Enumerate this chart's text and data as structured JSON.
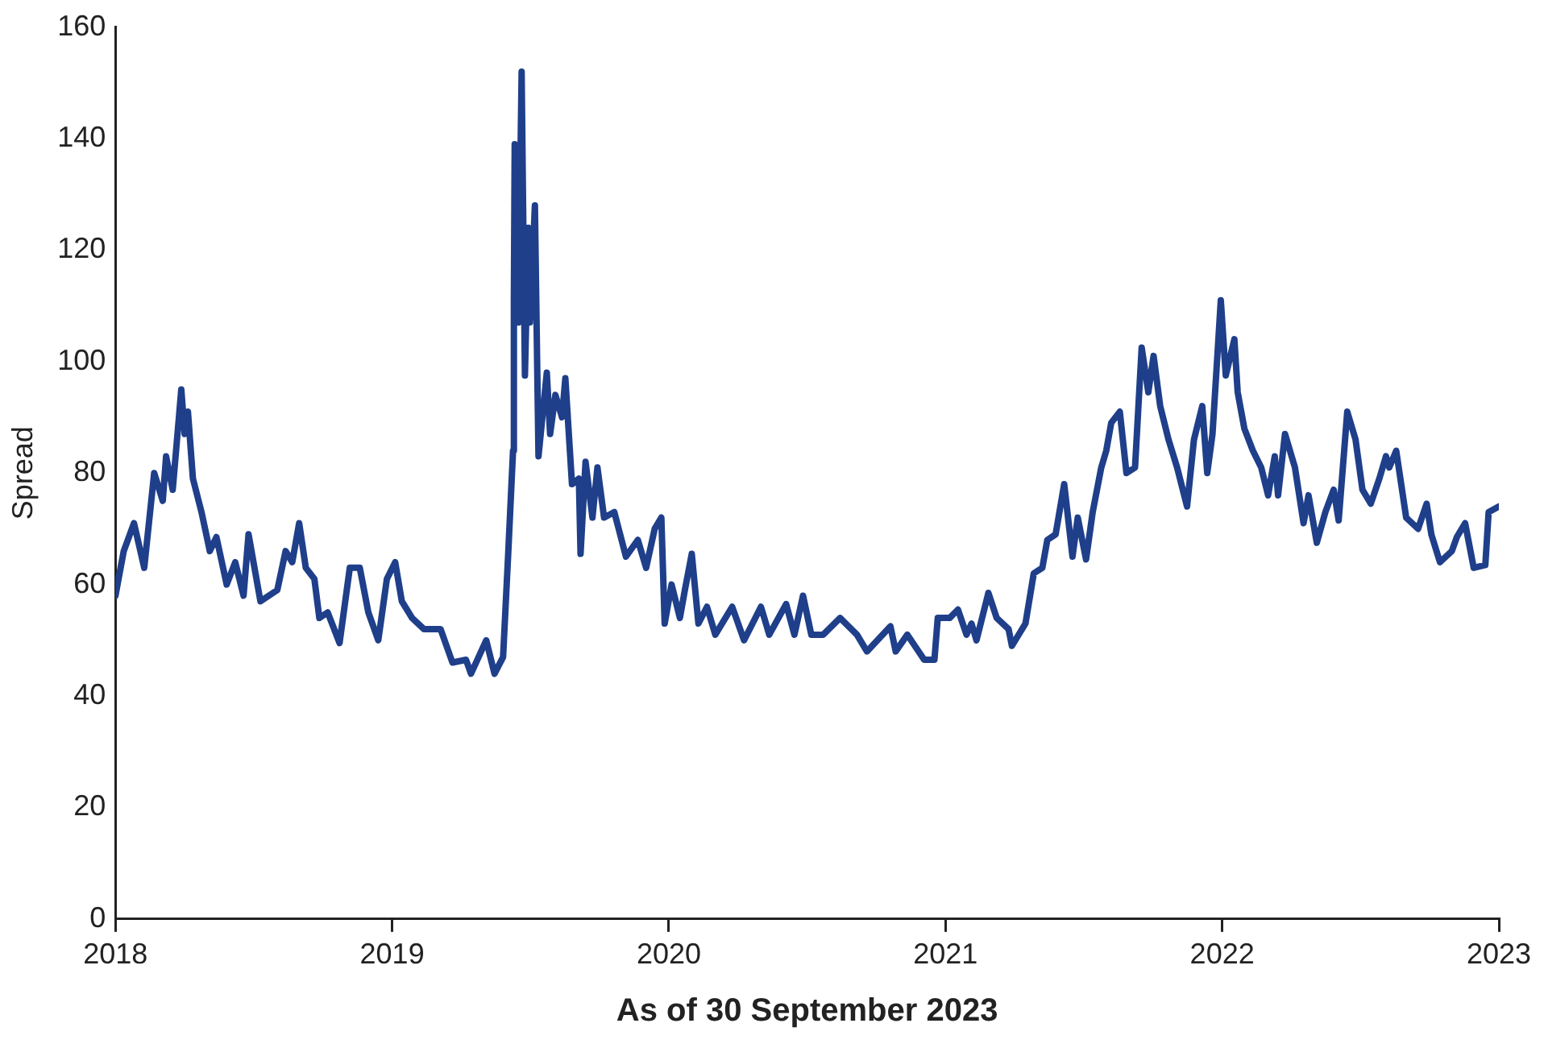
{
  "chart_data": {
    "type": "line",
    "xlabel": "As of 30 September 2023",
    "ylabel": "Spread",
    "xlim": [
      2018,
      2023
    ],
    "xticks": [
      2018,
      2019,
      2020,
      2021,
      2022,
      2023
    ],
    "ylim": [
      0,
      160
    ],
    "yticks": [
      0,
      20,
      40,
      60,
      80,
      100,
      120,
      140,
      160
    ],
    "grid": false,
    "legend": false,
    "marker": "none",
    "line_style": "solid",
    "series": [
      {
        "color": "#1f3f8a",
        "x": [
          2018.0,
          2018.03,
          2018.067,
          2018.104,
          2018.14,
          2018.171,
          2018.183,
          2018.207,
          2018.238,
          2018.25,
          2018.262,
          2018.28,
          2018.311,
          2018.341,
          2018.365,
          2018.402,
          2018.433,
          2018.463,
          2018.481,
          2018.524,
          2018.585,
          2018.615,
          2018.639,
          2018.664,
          2018.688,
          2018.719,
          2018.737,
          2018.767,
          2018.81,
          2018.847,
          2018.883,
          2018.914,
          2018.95,
          2018.981,
          2019.011,
          2019.035,
          2019.072,
          2019.115,
          2019.175,
          2019.218,
          2019.267,
          2019.285,
          2019.34,
          2019.37,
          2019.401,
          2019.419,
          2019.437,
          2019.44,
          2019.443,
          2019.456,
          2019.468,
          2019.48,
          2019.492,
          2019.498,
          2019.516,
          2019.529,
          2019.559,
          2019.571,
          2019.59,
          2019.614,
          2019.626,
          2019.65,
          2019.675,
          2019.681,
          2019.699,
          2019.724,
          2019.742,
          2019.766,
          2019.803,
          2019.845,
          2019.888,
          2019.918,
          2019.949,
          2019.973,
          2019.985,
          2020.01,
          2020.04,
          2020.058,
          2020.083,
          2020.107,
          2020.138,
          2020.168,
          2020.229,
          2020.272,
          2020.333,
          2020.363,
          2020.424,
          2020.454,
          2020.485,
          2020.515,
          2020.558,
          2020.619,
          2020.68,
          2020.716,
          2020.801,
          2020.82,
          2020.862,
          2020.923,
          2020.96,
          2020.972,
          2021.015,
          2021.045,
          2021.076,
          2021.094,
          2021.112,
          2021.155,
          2021.185,
          2021.228,
          2021.24,
          2021.289,
          2021.319,
          2021.35,
          2021.368,
          2021.398,
          2021.429,
          2021.459,
          2021.478,
          2021.508,
          2021.532,
          2021.563,
          2021.581,
          2021.599,
          2021.63,
          2021.654,
          2021.685,
          2021.709,
          2021.733,
          2021.752,
          2021.776,
          2021.806,
          2021.837,
          2021.873,
          2021.898,
          2021.928,
          2021.946,
          2021.965,
          2021.995,
          2022.013,
          2022.044,
          2022.056,
          2022.08,
          2022.111,
          2022.141,
          2022.166,
          2022.19,
          2022.202,
          2022.227,
          2022.263,
          2022.294,
          2022.312,
          2022.342,
          2022.373,
          2022.403,
          2022.421,
          2022.452,
          2022.482,
          2022.507,
          2022.537,
          2022.568,
          2022.592,
          2022.604,
          2022.629,
          2022.665,
          2022.708,
          2022.739,
          2022.756,
          2022.787,
          2022.83,
          2022.848,
          2022.878,
          2022.909,
          2022.951,
          2022.963,
          2023.0
        ],
        "values": [
          58,
          66,
          71,
          63,
          80,
          75,
          83,
          77,
          95,
          87,
          91,
          79,
          73,
          66,
          68.5,
          60,
          64,
          58,
          69,
          57,
          59,
          66,
          64,
          71,
          63,
          61,
          54,
          55,
          49.5,
          63,
          63,
          55,
          50,
          61,
          64,
          57,
          54,
          52,
          52,
          46,
          46.5,
          44,
          50,
          44,
          47,
          65,
          84,
          111,
          139,
          107,
          152,
          97.5,
          124,
          107,
          128,
          83,
          98,
          87,
          94,
          90,
          97,
          78,
          79,
          65.5,
          82,
          72,
          81,
          72,
          73,
          65,
          68,
          63,
          70,
          72,
          53,
          60,
          54,
          59,
          65.5,
          53,
          56,
          51,
          56,
          50,
          56,
          51,
          56.5,
          51,
          58,
          51,
          51,
          54,
          51,
          48,
          52.5,
          48,
          51,
          46.5,
          46.5,
          54,
          54,
          55.5,
          51,
          53,
          50,
          58.5,
          54,
          52,
          49,
          53,
          62,
          63,
          68,
          69,
          78,
          65,
          72,
          64.5,
          73,
          81,
          84,
          89,
          91,
          80,
          81,
          102.5,
          94.5,
          101,
          92,
          86,
          81,
          74,
          86,
          92,
          80,
          87,
          111,
          97.5,
          104,
          94.5,
          88,
          84,
          81,
          76,
          83,
          76,
          87,
          81,
          71,
          76,
          67.5,
          73,
          77,
          71.5,
          91,
          86,
          77,
          74.5,
          79,
          83,
          81,
          84,
          72,
          70,
          74.5,
          69,
          64,
          66,
          68.5,
          71,
          63,
          63.5,
          73,
          74
        ]
      }
    ]
  }
}
